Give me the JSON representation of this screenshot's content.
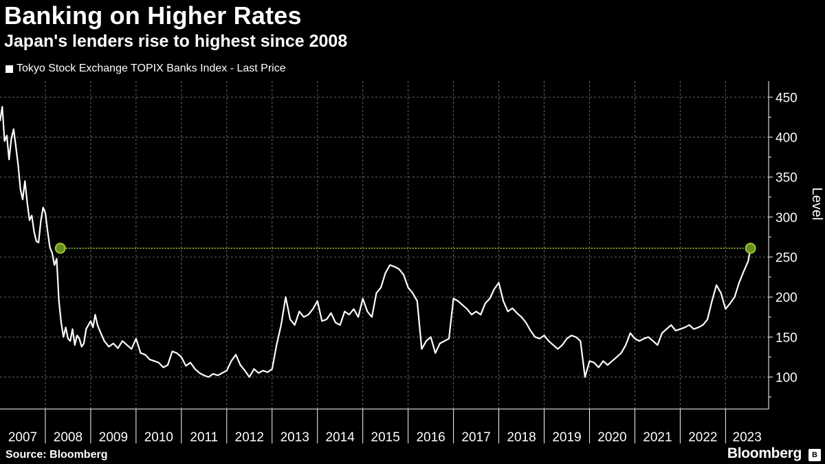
{
  "header": {
    "title": "Banking on Higher Rates",
    "subtitle": "Japan's lenders rise to highest since 2008"
  },
  "legend": {
    "label": "Tokyo Stock Exchange TOPIX Banks Index - Last Price"
  },
  "footer": {
    "source": "Source: Bloomberg",
    "brand": "Bloomberg",
    "brand_icon": "B"
  },
  "colors": {
    "background": "#000000",
    "line": "#ffffff",
    "grid": "#666666",
    "highlight": "#9acd32"
  },
  "chart_data": {
    "type": "line",
    "title": "Banking on Higher Rates",
    "subtitle": "Japan's lenders rise to highest since 2008",
    "ylabel": "Level",
    "xlabel": "",
    "xlim": [
      2007.0,
      2023.95
    ],
    "ylim": [
      60,
      470
    ],
    "yticks": [
      100,
      150,
      200,
      250,
      300,
      350,
      400,
      450
    ],
    "xticks": [
      "2007",
      "2008",
      "2009",
      "2010",
      "2011",
      "2012",
      "2013",
      "2014",
      "2015",
      "2016",
      "2017",
      "2018",
      "2019",
      "2020",
      "2021",
      "2022",
      "2023"
    ],
    "grid": true,
    "legend_position": "top-left",
    "series": [
      {
        "name": "Tokyo Stock Exchange TOPIX Banks Index - Last Price",
        "x": [
          2007.0,
          2007.05,
          2007.1,
          2007.15,
          2007.2,
          2007.25,
          2007.3,
          2007.35,
          2007.4,
          2007.45,
          2007.5,
          2007.55,
          2007.6,
          2007.65,
          2007.7,
          2007.75,
          2007.8,
          2007.85,
          2007.9,
          2007.95,
          2008.0,
          2008.05,
          2008.1,
          2008.15,
          2008.2,
          2008.25,
          2008.3,
          2008.35,
          2008.4,
          2008.45,
          2008.5,
          2008.55,
          2008.6,
          2008.65,
          2008.7,
          2008.75,
          2008.8,
          2008.85,
          2008.9,
          2008.95,
          2009.0,
          2009.05,
          2009.1,
          2009.15,
          2009.2,
          2009.3,
          2009.4,
          2009.5,
          2009.6,
          2009.7,
          2009.8,
          2009.9,
          2010.0,
          2010.1,
          2010.2,
          2010.3,
          2010.4,
          2010.5,
          2010.6,
          2010.7,
          2010.8,
          2010.9,
          2011.0,
          2011.1,
          2011.2,
          2011.3,
          2011.4,
          2011.5,
          2011.6,
          2011.7,
          2011.8,
          2011.9,
          2012.0,
          2012.1,
          2012.2,
          2012.3,
          2012.4,
          2012.5,
          2012.6,
          2012.7,
          2012.8,
          2012.9,
          2013.0,
          2013.1,
          2013.2,
          2013.3,
          2013.4,
          2013.5,
          2013.6,
          2013.7,
          2013.8,
          2013.9,
          2014.0,
          2014.1,
          2014.2,
          2014.3,
          2014.4,
          2014.5,
          2014.6,
          2014.7,
          2014.8,
          2014.9,
          2015.0,
          2015.1,
          2015.2,
          2015.3,
          2015.4,
          2015.5,
          2015.6,
          2015.7,
          2015.8,
          2015.9,
          2016.0,
          2016.1,
          2016.2,
          2016.3,
          2016.4,
          2016.5,
          2016.6,
          2016.7,
          2016.8,
          2016.9,
          2017.0,
          2017.1,
          2017.2,
          2017.3,
          2017.4,
          2017.5,
          2017.6,
          2017.7,
          2017.8,
          2017.9,
          2018.0,
          2018.1,
          2018.2,
          2018.3,
          2018.4,
          2018.5,
          2018.6,
          2018.7,
          2018.8,
          2018.9,
          2019.0,
          2019.1,
          2019.2,
          2019.3,
          2019.4,
          2019.5,
          2019.6,
          2019.7,
          2019.8,
          2019.9,
          2020.0,
          2020.1,
          2020.2,
          2020.3,
          2020.4,
          2020.5,
          2020.6,
          2020.7,
          2020.8,
          2020.9,
          2021.0,
          2021.1,
          2021.2,
          2021.3,
          2021.4,
          2021.5,
          2021.6,
          2021.7,
          2021.8,
          2021.9,
          2022.0,
          2022.1,
          2022.2,
          2022.3,
          2022.4,
          2022.5,
          2022.6,
          2022.7,
          2022.8,
          2022.9,
          2023.0,
          2023.1,
          2023.2,
          2023.3,
          2023.4,
          2023.5,
          2023.55
        ],
        "values": [
          420,
          438,
          395,
          402,
          372,
          398,
          410,
          388,
          365,
          335,
          322,
          345,
          318,
          296,
          302,
          282,
          270,
          268,
          295,
          312,
          305,
          282,
          262,
          255,
          240,
          248,
          195,
          168,
          150,
          162,
          148,
          145,
          160,
          140,
          152,
          148,
          138,
          142,
          160,
          165,
          170,
          162,
          178,
          165,
          158,
          145,
          138,
          142,
          136,
          145,
          140,
          135,
          148,
          130,
          128,
          122,
          120,
          118,
          112,
          115,
          132,
          130,
          125,
          114,
          118,
          110,
          105,
          102,
          100,
          104,
          102,
          105,
          108,
          120,
          128,
          115,
          108,
          100,
          110,
          105,
          108,
          106,
          110,
          140,
          165,
          200,
          172,
          165,
          182,
          175,
          178,
          185,
          195,
          170,
          172,
          180,
          168,
          165,
          182,
          178,
          185,
          175,
          198,
          182,
          175,
          205,
          212,
          230,
          240,
          238,
          235,
          228,
          212,
          205,
          195,
          135,
          145,
          150,
          130,
          142,
          145,
          148,
          198,
          195,
          190,
          185,
          178,
          182,
          178,
          192,
          198,
          210,
          218,
          195,
          182,
          186,
          180,
          175,
          168,
          158,
          150,
          148,
          152,
          145,
          140,
          135,
          140,
          148,
          152,
          150,
          145,
          100,
          120,
          118,
          112,
          120,
          115,
          120,
          125,
          130,
          140,
          155,
          148,
          145,
          148,
          150,
          145,
          140,
          155,
          160,
          165,
          158,
          160,
          162,
          165,
          160,
          162,
          165,
          172,
          195,
          215,
          205,
          185,
          192,
          200,
          218,
          232,
          245,
          261
        ]
      }
    ],
    "annotations": [
      {
        "type": "reference-line",
        "from_x": 2008.33,
        "to_x": 2023.55,
        "y": 261,
        "label": ""
      },
      {
        "type": "marker",
        "x": 2008.33,
        "y": 261
      },
      {
        "type": "marker",
        "x": 2023.55,
        "y": 261
      }
    ]
  }
}
